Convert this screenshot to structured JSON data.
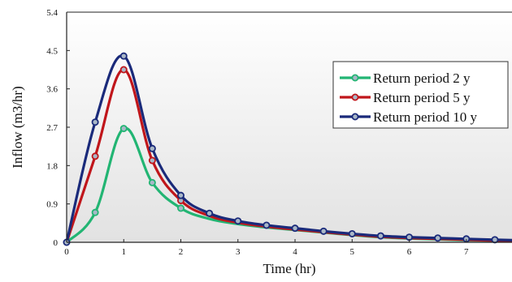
{
  "chart_data": {
    "type": "line",
    "xlabel": "Time (hr)",
    "ylabel": "Inflow (m3/hr)",
    "xlim": [
      0,
      7.8
    ],
    "ylim": [
      0,
      5.4
    ],
    "x_ticks": [
      "0",
      "1",
      "2",
      "3",
      "4",
      "5",
      "6",
      "7"
    ],
    "y_ticks": [
      "0",
      "0.9",
      "1.8",
      "2.7",
      "3.6",
      "4.5",
      "5.4"
    ],
    "grid": false,
    "legend_position": "upper-right",
    "series": [
      {
        "name": "Return period 2 y",
        "color": "#22b573",
        "points": [
          [
            0,
            0
          ],
          [
            0.5,
            0.7
          ],
          [
            1,
            2.67
          ],
          [
            1.5,
            1.4
          ],
          [
            2,
            0.8
          ],
          [
            2.5,
            0.55
          ],
          [
            3,
            0.43
          ],
          [
            3.5,
            0.35
          ],
          [
            4,
            0.29
          ],
          [
            4.5,
            0.23
          ],
          [
            5,
            0.17
          ],
          [
            5.5,
            0.12
          ],
          [
            6,
            0.09
          ],
          [
            6.5,
            0.07
          ],
          [
            7,
            0.05
          ],
          [
            7.5,
            0.04
          ],
          [
            7.8,
            0.03
          ]
        ],
        "markers": [
          [
            0.5,
            0.7
          ],
          [
            1,
            2.67
          ],
          [
            1.5,
            1.4
          ],
          [
            2,
            0.8
          ]
        ]
      },
      {
        "name": "Return period 5 y",
        "color": "#c0161b",
        "points": [
          [
            0,
            0
          ],
          [
            0.5,
            2.02
          ],
          [
            1,
            4.05
          ],
          [
            1.5,
            1.92
          ],
          [
            2,
            0.98
          ],
          [
            2.5,
            0.62
          ],
          [
            3,
            0.46
          ],
          [
            3.5,
            0.37
          ],
          [
            4,
            0.3
          ],
          [
            4.5,
            0.24
          ],
          [
            5,
            0.18
          ],
          [
            5.5,
            0.13
          ],
          [
            6,
            0.1
          ],
          [
            6.5,
            0.08
          ],
          [
            7,
            0.06
          ],
          [
            7.5,
            0.04
          ],
          [
            7.8,
            0.03
          ]
        ],
        "markers": [
          [
            0.5,
            2.02
          ],
          [
            1,
            4.05
          ],
          [
            1.5,
            1.92
          ],
          [
            2,
            0.98
          ]
        ]
      },
      {
        "name": "Return period 10 y",
        "color": "#1a2a7a",
        "points": [
          [
            0,
            0
          ],
          [
            0.5,
            2.82
          ],
          [
            1,
            4.37
          ],
          [
            1.5,
            2.2
          ],
          [
            2,
            1.1
          ],
          [
            2.5,
            0.68
          ],
          [
            3,
            0.5
          ],
          [
            3.5,
            0.4
          ],
          [
            4,
            0.33
          ],
          [
            4.5,
            0.26
          ],
          [
            5,
            0.2
          ],
          [
            5.5,
            0.15
          ],
          [
            6,
            0.12
          ],
          [
            6.5,
            0.1
          ],
          [
            7,
            0.08
          ],
          [
            7.5,
            0.06
          ],
          [
            7.8,
            0.05
          ]
        ],
        "markers": [
          [
            0,
            0
          ],
          [
            0.5,
            2.82
          ],
          [
            1,
            4.37
          ],
          [
            1.5,
            2.2
          ],
          [
            2,
            1.1
          ],
          [
            2.5,
            0.68
          ],
          [
            3,
            0.5
          ],
          [
            3.5,
            0.4
          ],
          [
            4,
            0.33
          ],
          [
            4.5,
            0.26
          ],
          [
            5,
            0.2
          ],
          [
            5.5,
            0.15
          ],
          [
            6,
            0.12
          ],
          [
            6.5,
            0.1
          ],
          [
            7,
            0.08
          ],
          [
            7.5,
            0.06
          ]
        ]
      }
    ]
  }
}
